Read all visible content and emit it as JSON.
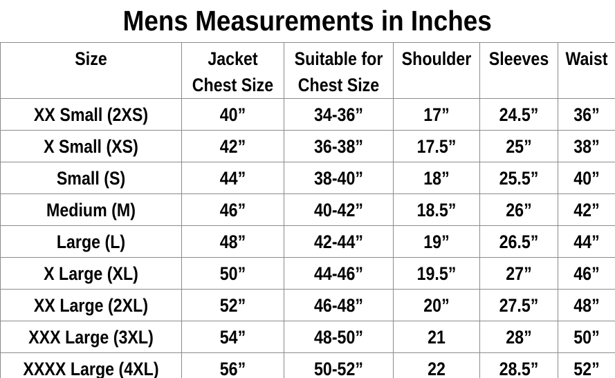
{
  "title": "Mens Measurements in Inches",
  "table": {
    "headers": [
      [
        "Size"
      ],
      [
        "Jacket",
        "Chest Size"
      ],
      [
        "Suitable for",
        "Chest Size"
      ],
      [
        "Shoulder"
      ],
      [
        "Sleeves"
      ],
      [
        "Waist"
      ]
    ],
    "rows": [
      [
        "XX Small (2XS)",
        "40”",
        "34-36”",
        "17”",
        "24.5”",
        "36”"
      ],
      [
        "X Small (XS)",
        "42”",
        "36-38”",
        "17.5”",
        "25”",
        "38”"
      ],
      [
        "Small (S)",
        "44”",
        "38-40”",
        "18”",
        "25.5”",
        "40”"
      ],
      [
        "Medium (M)",
        "46”",
        "40-42”",
        "18.5”",
        "26”",
        "42”"
      ],
      [
        "Large (L)",
        "48”",
        "42-44”",
        "19”",
        "26.5”",
        "44”"
      ],
      [
        "X Large (XL)",
        "50”",
        "44-46”",
        "19.5”",
        "27”",
        "46”"
      ],
      [
        "XX Large (2XL)",
        "52”",
        "46-48”",
        "20”",
        "27.5”",
        "48”"
      ],
      [
        "XXX Large (3XL)",
        "54”",
        "48-50”",
        "21",
        "28”",
        "50”"
      ],
      [
        "XXXX Large (4XL)",
        "56”",
        "50-52”",
        "22",
        "28.5”",
        "52”"
      ]
    ]
  }
}
